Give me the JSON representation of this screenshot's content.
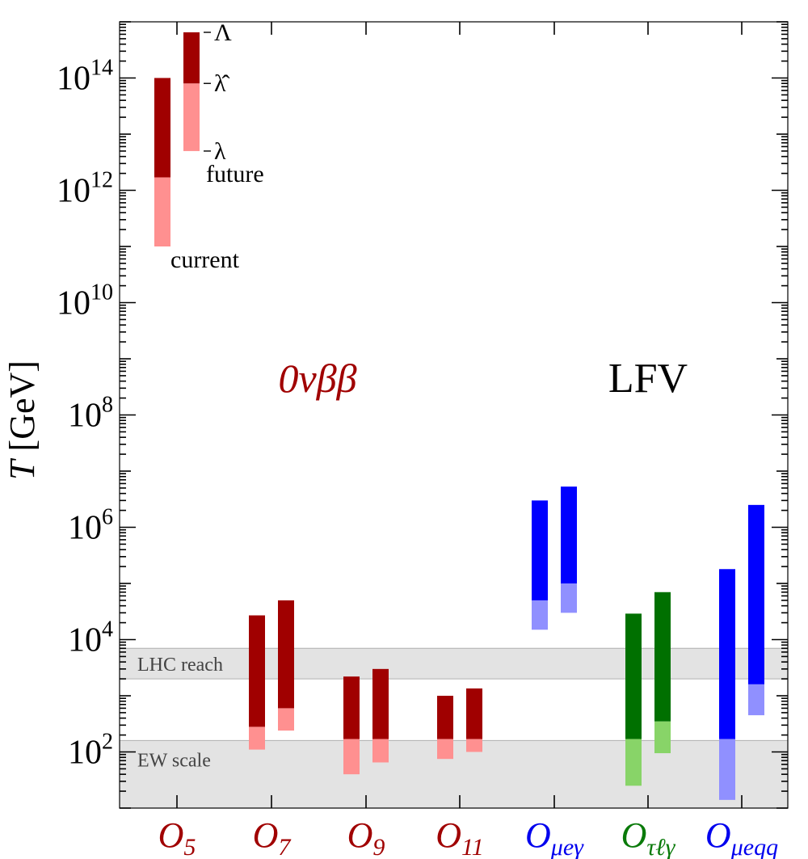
{
  "chart_data": {
    "type": "bar",
    "subtype": "floating-range-bars",
    "yscale": "log",
    "ylim": [
      10,
      1000000000000000.0
    ],
    "ylabel_var": "T",
    "ylabel_unit": "[GeV]",
    "ytick_labels": [
      {
        "value": 100,
        "base": "10",
        "exp": "2"
      },
      {
        "value": 10000,
        "base": "10",
        "exp": "4"
      },
      {
        "value": 1000000,
        "base": "10",
        "exp": "6"
      },
      {
        "value": 100000000,
        "base": "10",
        "exp": "8"
      },
      {
        "value": 10000000000,
        "base": "10",
        "exp": "10"
      },
      {
        "value": 1000000000000,
        "base": "10",
        "exp": "12"
      },
      {
        "value": 100000000000000,
        "base": "10",
        "exp": "14"
      }
    ],
    "categories": [
      {
        "base": "O",
        "sub": "5",
        "color": "#a00000"
      },
      {
        "base": "O",
        "sub": "7",
        "color": "#a00000"
      },
      {
        "base": "O",
        "sub": "9",
        "color": "#a00000"
      },
      {
        "base": "O",
        "sub": "11",
        "color": "#a00000"
      },
      {
        "base": "O",
        "sub": "μeγ",
        "color": "#0000ee"
      },
      {
        "base": "O",
        "sub": "τℓγ",
        "color": "#0a7a0a"
      },
      {
        "base": "O",
        "sub": "μeqq",
        "color": "#0000ee"
      }
    ],
    "bands": [
      {
        "label": "LHC reach",
        "y_low": 2000,
        "y_high": 7000
      },
      {
        "label": "EW scale",
        "y_low": 10,
        "y_high": 160
      }
    ],
    "bars": [
      {
        "category": 0,
        "kind": "current",
        "lambda": 100000000000.0,
        "lambda_hat": 1700000000000.0,
        "Lambda": 100000000000000.0,
        "dark": "#a00000",
        "light": "#ff9090"
      },
      {
        "category": 0,
        "kind": "future",
        "lambda": 5000000000000.0,
        "lambda_hat": 80000000000000.0,
        "Lambda": 650000000000000.0,
        "dark": "#a00000",
        "light": "#ff9090"
      },
      {
        "category": 1,
        "kind": "current",
        "lambda": 110,
        "lambda_hat": 280,
        "Lambda": 27000.0,
        "dark": "#a00000",
        "light": "#ff9090"
      },
      {
        "category": 1,
        "kind": "future",
        "lambda": 240,
        "lambda_hat": 600,
        "Lambda": 50000.0,
        "dark": "#a00000",
        "light": "#ff9090"
      },
      {
        "category": 2,
        "kind": "current",
        "lambda": 40,
        "lambda_hat": 170,
        "Lambda": 2200.0,
        "dark": "#a00000",
        "light": "#ff9090"
      },
      {
        "category": 2,
        "kind": "future",
        "lambda": 65,
        "lambda_hat": 170,
        "Lambda": 3000.0,
        "dark": "#a00000",
        "light": "#ff9090"
      },
      {
        "category": 3,
        "kind": "current",
        "lambda": 75,
        "lambda_hat": 170,
        "Lambda": 1000.0,
        "dark": "#a00000",
        "light": "#ff9090"
      },
      {
        "category": 3,
        "kind": "future",
        "lambda": 100,
        "lambda_hat": 170,
        "Lambda": 1350.0,
        "dark": "#a00000",
        "light": "#ff9090"
      },
      {
        "category": 4,
        "kind": "current",
        "lambda": 15000.0,
        "lambda_hat": 50000.0,
        "Lambda": 3000000.0,
        "dark": "#0000ff",
        "light": "#9090ff"
      },
      {
        "category": 4,
        "kind": "future",
        "lambda": 30000.0,
        "lambda_hat": 100000.0,
        "Lambda": 5300000.0,
        "dark": "#0000ff",
        "light": "#9090ff"
      },
      {
        "category": 5,
        "kind": "current",
        "lambda": 25,
        "lambda_hat": 170,
        "Lambda": 29000.0,
        "dark": "#007000",
        "light": "#88d468"
      },
      {
        "category": 5,
        "kind": "future",
        "lambda": 95,
        "lambda_hat": 350,
        "Lambda": 70000.0,
        "dark": "#007000",
        "light": "#88d468"
      },
      {
        "category": 6,
        "kind": "current",
        "lambda": 14,
        "lambda_hat": 170,
        "Lambda": 180000.0,
        "dark": "#0000ff",
        "light": "#9090ff"
      },
      {
        "category": 6,
        "kind": "future",
        "lambda": 450,
        "lambda_hat": 1600.0,
        "Lambda": 2500000.0,
        "dark": "#0000ff",
        "light": "#9090ff"
      }
    ],
    "annotations": {
      "legend_Lambda": "Λ",
      "legend_lambda_hat": "λ̂",
      "legend_lambda": "λ",
      "legend_future": "future",
      "legend_current": "current",
      "group_left": "0νββ",
      "group_right": "LFV"
    },
    "colors": {
      "band": "#e3e3e3",
      "band_edge": "#b0b0b0",
      "axis": "#000000",
      "red_text": "#a00000",
      "blue_text": "#0000ee",
      "green_text": "#0a7a0a"
    }
  }
}
